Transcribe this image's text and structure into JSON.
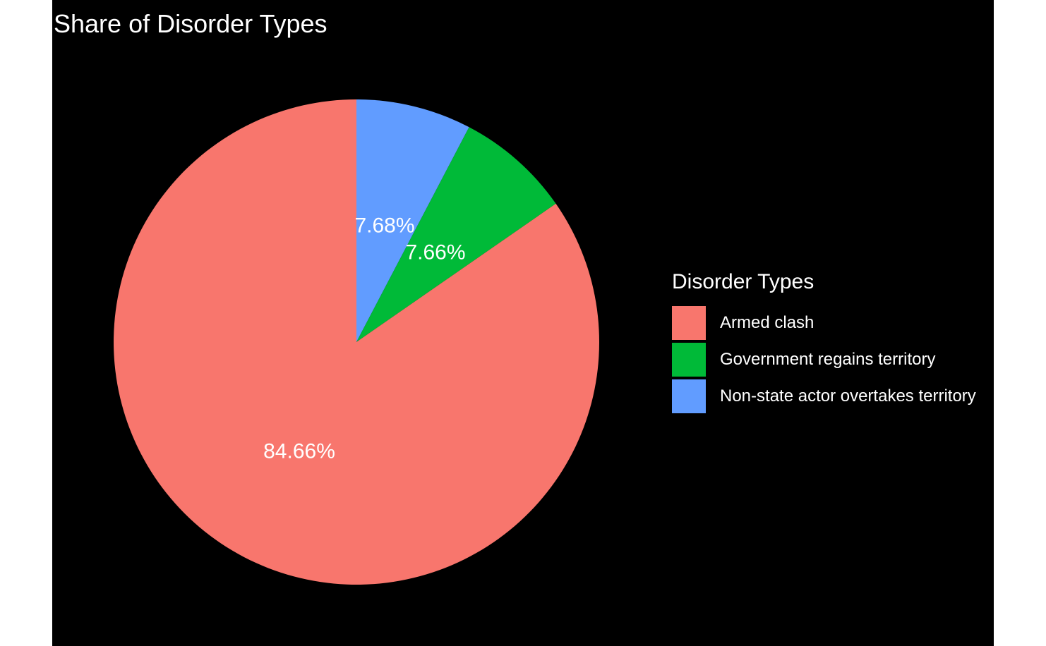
{
  "chart_data": {
    "type": "pie",
    "title": "Share of Disorder Types",
    "legend": {
      "title": "Disorder Types",
      "position": "right"
    },
    "slices": [
      {
        "name": "Armed clash",
        "value": 84.66,
        "label": "84.66%",
        "color": "#F8766D"
      },
      {
        "name": "Government regains territory",
        "value": 7.66,
        "label": "7.66%",
        "color": "#00BA38"
      },
      {
        "name": "Non-state actor overtakes territory",
        "value": 7.68,
        "label": "7.68%",
        "color": "#619CFF"
      }
    ],
    "start": "12 o'clock",
    "direction": "counter-clockwise"
  },
  "colors": {
    "panel_background": "#000000",
    "text": "#FFFFFF"
  }
}
